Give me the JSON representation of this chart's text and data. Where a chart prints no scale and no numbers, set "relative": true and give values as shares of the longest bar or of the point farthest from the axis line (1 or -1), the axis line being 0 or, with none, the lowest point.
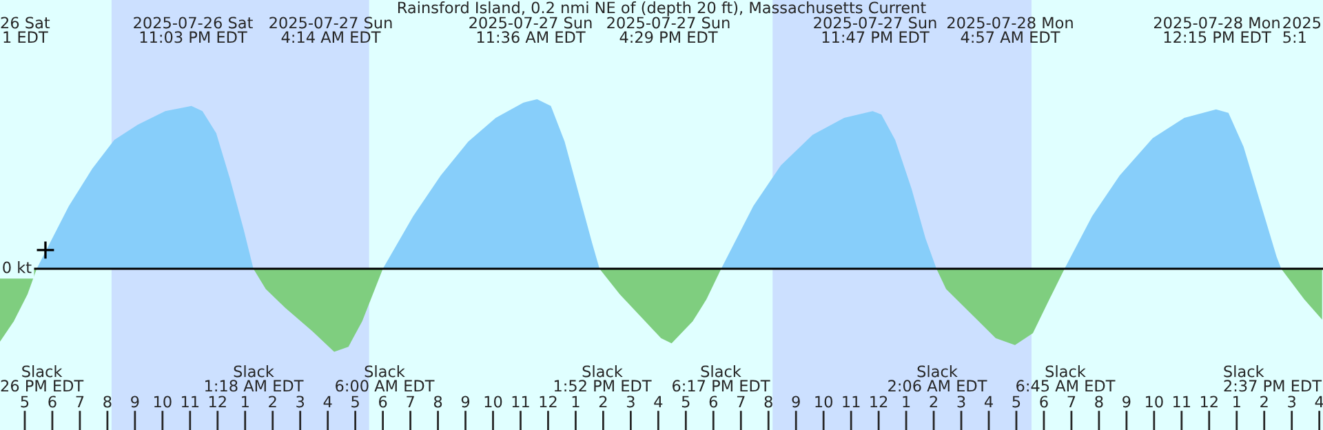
{
  "chart_data": {
    "type": "area",
    "title": "Rainsford Island, 0.2 nmi NE of (depth 20 ft), Massachusetts Current",
    "relative": true,
    "xlim": [
      "2025-07-26T16:06",
      "2025-07-28T16:08"
    ],
    "xticks": [
      {
        "value": "2025-07-26T17:00",
        "label": "5"
      },
      {
        "value": "2025-07-26T18:00",
        "label": "6"
      },
      {
        "value": "2025-07-26T19:00",
        "label": "7"
      },
      {
        "value": "2025-07-26T20:00",
        "label": "8"
      },
      {
        "value": "2025-07-26T21:00",
        "label": "9"
      },
      {
        "value": "2025-07-26T22:00",
        "label": "10"
      },
      {
        "value": "2025-07-26T23:00",
        "label": "11"
      },
      {
        "value": "2025-07-27T00:00",
        "label": "12"
      },
      {
        "value": "2025-07-27T01:00",
        "label": "1"
      },
      {
        "value": "2025-07-27T02:00",
        "label": "2"
      },
      {
        "value": "2025-07-27T03:00",
        "label": "3"
      },
      {
        "value": "2025-07-27T04:00",
        "label": "4"
      },
      {
        "value": "2025-07-27T05:00",
        "label": "5"
      },
      {
        "value": "2025-07-27T06:00",
        "label": "6"
      },
      {
        "value": "2025-07-27T07:00",
        "label": "7"
      },
      {
        "value": "2025-07-27T08:00",
        "label": "8"
      },
      {
        "value": "2025-07-27T09:00",
        "label": "9"
      },
      {
        "value": "2025-07-27T10:00",
        "label": "10"
      },
      {
        "value": "2025-07-27T11:00",
        "label": "11"
      },
      {
        "value": "2025-07-27T12:00",
        "label": "12"
      },
      {
        "value": "2025-07-27T13:00",
        "label": "1"
      },
      {
        "value": "2025-07-27T14:00",
        "label": "2"
      },
      {
        "value": "2025-07-27T15:00",
        "label": "3"
      },
      {
        "value": "2025-07-27T16:00",
        "label": "4"
      },
      {
        "value": "2025-07-27T17:00",
        "label": "5"
      },
      {
        "value": "2025-07-27T18:00",
        "label": "6"
      },
      {
        "value": "2025-07-27T19:00",
        "label": "7"
      },
      {
        "value": "2025-07-27T20:00",
        "label": "8"
      },
      {
        "value": "2025-07-27T21:00",
        "label": "9"
      },
      {
        "value": "2025-07-27T22:00",
        "label": "10"
      },
      {
        "value": "2025-07-27T23:00",
        "label": "11"
      },
      {
        "value": "2025-07-28T00:00",
        "label": "12"
      },
      {
        "value": "2025-07-28T01:00",
        "label": "1"
      },
      {
        "value": "2025-07-28T02:00",
        "label": "2"
      },
      {
        "value": "2025-07-28T03:00",
        "label": "3"
      },
      {
        "value": "2025-07-28T04:00",
        "label": "4"
      },
      {
        "value": "2025-07-28T05:00",
        "label": "5"
      },
      {
        "value": "2025-07-28T06:00",
        "label": "6"
      },
      {
        "value": "2025-07-28T07:00",
        "label": "7"
      },
      {
        "value": "2025-07-28T08:00",
        "label": "8"
      },
      {
        "value": "2025-07-28T09:00",
        "label": "9"
      },
      {
        "value": "2025-07-28T10:00",
        "label": "10"
      },
      {
        "value": "2025-07-28T11:00",
        "label": "11"
      },
      {
        "value": "2025-07-28T12:00",
        "label": "12"
      },
      {
        "value": "2025-07-28T13:00",
        "label": "1"
      },
      {
        "value": "2025-07-28T14:00",
        "label": "2"
      },
      {
        "value": "2025-07-28T15:00",
        "label": "3"
      },
      {
        "value": "2025-07-28T16:00",
        "label": "4"
      }
    ],
    "tick_labels": "x",
    "grid": false,
    "series": [
      {
        "color": "#87cefa",
        "x": [
          "2025-07-26T17:26",
          "2025-07-26T18:36",
          "2025-07-26T19:27",
          "2025-07-26T20:15",
          "2025-07-26T21:06",
          "2025-07-26T22:06",
          "2025-07-26T23:03",
          "2025-07-26T23:27",
          "2025-07-26T23:57",
          "2025-07-27T00:27",
          "2025-07-27T00:57",
          "2025-07-27T01:18",
          "2025-07-27T03:30",
          "2025-07-27T06:00",
          "2025-07-27T07:06",
          "2025-07-27T08:06",
          "2025-07-27T09:06",
          "2025-07-27T10:06",
          "2025-07-27T11:06",
          "2025-07-27T11:36",
          "2025-07-27T12:06",
          "2025-07-27T12:36",
          "2025-07-27T13:06",
          "2025-07-27T13:36",
          "2025-07-27T13:52",
          "2025-07-27T16:00",
          "2025-07-27T18:17",
          "2025-07-27T19:27",
          "2025-07-27T20:27",
          "2025-07-27T21:36",
          "2025-07-27T22:45",
          "2025-07-27T23:47",
          "2025-07-28T00:06",
          "2025-07-28T00:36",
          "2025-07-28T01:12",
          "2025-07-28T01:42",
          "2025-07-28T02:06",
          "2025-07-28T04:00",
          "2025-07-28T06:45",
          "2025-07-28T07:45",
          "2025-07-28T08:45",
          "2025-07-28T09:57",
          "2025-07-28T11:06",
          "2025-07-28T12:15",
          "2025-07-28T12:42",
          "2025-07-28T13:15",
          "2025-07-28T13:57",
          "2025-07-28T14:27",
          "2025-07-28T14:37"
        ],
        "values": [
          0,
          0.37,
          0.59,
          0.76,
          0.85,
          0.93,
          0.96,
          0.93,
          0.8,
          0.53,
          0.23,
          0,
          null,
          0,
          0.31,
          0.55,
          0.75,
          0.89,
          0.98,
          1.0,
          0.96,
          0.75,
          0.45,
          0.15,
          0,
          null,
          0,
          0.37,
          0.61,
          0.79,
          0.89,
          0.93,
          0.91,
          0.76,
          0.47,
          0.18,
          0,
          null,
          0,
          0.31,
          0.55,
          0.77,
          0.89,
          0.94,
          0.92,
          0.72,
          0.34,
          0.07,
          0
        ]
      },
      {
        "color": "#7fce7f",
        "x": [
          "2025-07-26T16:06",
          "2025-07-26T16:36",
          "2025-07-26T17:06",
          "2025-07-26T17:26",
          "2025-07-26T21:00",
          "2025-07-27T01:18",
          "2025-07-27T01:45",
          "2025-07-27T02:27",
          "2025-07-27T03:27",
          "2025-07-27T04:14",
          "2025-07-27T04:45",
          "2025-07-27T05:15",
          "2025-07-27T06:00",
          "2025-07-27T10:00",
          "2025-07-27T13:52",
          "2025-07-27T14:36",
          "2025-07-27T16:06",
          "2025-07-27T16:29",
          "2025-07-27T17:15",
          "2025-07-27T17:45",
          "2025-07-27T18:17",
          "2025-07-27T22:00",
          "2025-07-28T02:06",
          "2025-07-28T02:27",
          "2025-07-28T03:27",
          "2025-07-28T04:15",
          "2025-07-28T04:57",
          "2025-07-28T05:36",
          "2025-07-28T06:12",
          "2025-07-28T06:45",
          "2025-07-28T10:00",
          "2025-07-28T14:37",
          "2025-07-28T15:27",
          "2025-07-28T16:06"
        ],
        "values": [
          -0.43,
          -0.31,
          -0.15,
          0,
          null,
          0,
          -0.12,
          -0.23,
          -0.37,
          -0.49,
          -0.46,
          -0.31,
          0,
          null,
          0,
          -0.15,
          -0.41,
          -0.44,
          -0.31,
          -0.18,
          0,
          null,
          0,
          -0.12,
          -0.28,
          -0.41,
          -0.45,
          -0.38,
          -0.18,
          0,
          null,
          0,
          -0.18,
          -0.3
        ]
      },
      {
        "type": "scatter",
        "color": "#000000",
        "marker": "cross",
        "x": [
          "2025-07-26T17:45"
        ],
        "values": [
          0.11
        ]
      }
    ],
    "bands": [
      {
        "axis": "x",
        "from": "2025-07-26T20:09",
        "to": "2025-07-27T05:30",
        "color": "#cce0ff"
      },
      {
        "axis": "x",
        "from": "2025-07-27T20:09",
        "to": "2025-07-28T05:33",
        "color": "#cce0ff"
      }
    ],
    "ref_lines": [
      {
        "axis": "y",
        "value": 0,
        "label": "0 kt",
        "color": "#000000"
      }
    ],
    "annotations": [
      "26 Sat\n1 EDT",
      "2025-07-26 Sat\n11:03 PM EDT",
      "2025-07-27 Sun\n4:14 AM EDT",
      "2025-07-27 Sun\n11:36 AM EDT",
      "2025-07-27 Sun\n4:29 PM EDT",
      "2025-07-27 Sun\n11:47 PM EDT",
      "2025-07-28 Mon\n4:57 AM EDT",
      "2025-07-28 Mon\n12:15 PM EDT",
      "2025\n5:1",
      "Slack\n26 PM EDT",
      "Slack\n1:18 AM EDT",
      "Slack\n6:00 AM EDT",
      "Slack\n1:52 PM EDT",
      "Slack\n6:17 PM EDT",
      "Slack\n2:06 AM EDT",
      "Slack\n6:45 AM EDT",
      "Slack\n2:37 PM EDT"
    ]
  }
}
